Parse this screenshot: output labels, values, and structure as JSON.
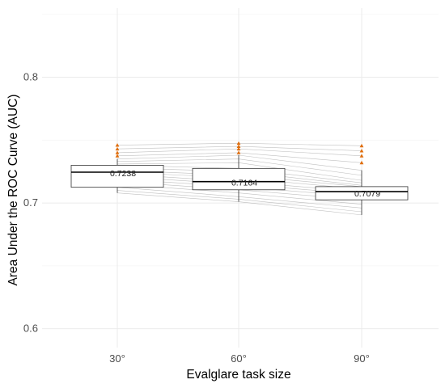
{
  "chart_data": {
    "type": "box",
    "xlabel": "Evalglare task size",
    "ylabel": "Area Under the ROC Curve (AUC)",
    "categories": [
      "30°",
      "60°",
      "90°"
    ],
    "ylim": [
      0.585,
      0.855
    ],
    "yticks": [
      0.6,
      0.7,
      0.8
    ],
    "ytick_labels": [
      "0.6",
      "0.7",
      "0.8"
    ],
    "grid": true,
    "colors": {
      "outlier": "#e06d0b",
      "paired_lines": "#9e9e9e",
      "box_edge": "#333333"
    },
    "boxes": [
      {
        "category": "30°",
        "whisker_low": 0.708,
        "q1": 0.7125,
        "median": 0.7245,
        "q3": 0.73,
        "whisker_high": 0.735,
        "mean_label": "0.7238",
        "outliers": [
          0.7375,
          0.74,
          0.743,
          0.746
        ]
      },
      {
        "category": "60°",
        "whisker_low": 0.701,
        "q1": 0.7105,
        "median": 0.717,
        "q3": 0.7275,
        "whisker_high": 0.738,
        "mean_label": "0.7164",
        "outliers": [
          0.74,
          0.743,
          0.745,
          0.7475
        ]
      },
      {
        "category": "90°",
        "whisker_low": 0.6905,
        "q1": 0.7025,
        "median": 0.709,
        "q3": 0.713,
        "whisker_high": 0.726,
        "mean_label": "0.7079",
        "outliers": [
          0.732,
          0.7375,
          0.7415,
          0.7455
        ]
      }
    ],
    "paired_series": [
      [
        0.746,
        0.7475,
        0.7455
      ],
      [
        0.743,
        0.745,
        0.7415
      ],
      [
        0.74,
        0.743,
        0.7375
      ],
      [
        0.7375,
        0.74,
        0.732
      ],
      [
        0.735,
        0.738,
        0.726
      ],
      [
        0.733,
        0.735,
        0.722
      ],
      [
        0.731,
        0.732,
        0.718
      ],
      [
        0.73,
        0.7275,
        0.716
      ],
      [
        0.728,
        0.725,
        0.714
      ],
      [
        0.726,
        0.722,
        0.713
      ],
      [
        0.7245,
        0.72,
        0.711
      ],
      [
        0.723,
        0.717,
        0.709
      ],
      [
        0.721,
        0.715,
        0.707
      ],
      [
        0.719,
        0.713,
        0.705
      ],
      [
        0.717,
        0.7105,
        0.7025
      ],
      [
        0.715,
        0.708,
        0.699
      ],
      [
        0.7125,
        0.705,
        0.696
      ],
      [
        0.71,
        0.703,
        0.693
      ],
      [
        0.708,
        0.701,
        0.6905
      ]
    ]
  }
}
